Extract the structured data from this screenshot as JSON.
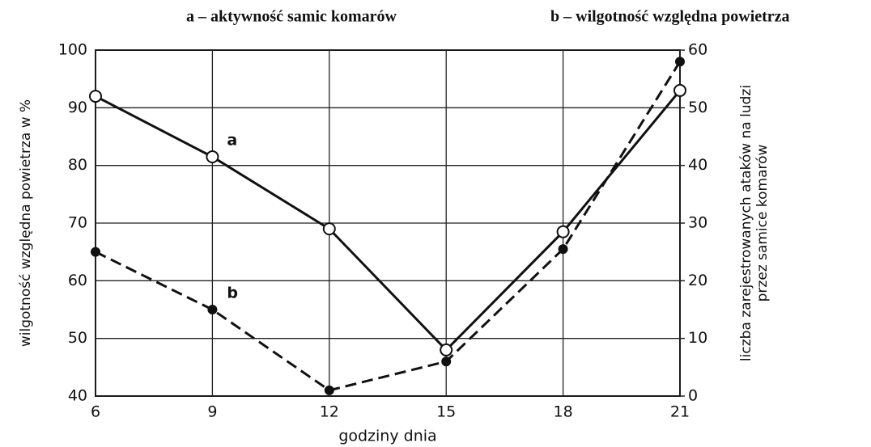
{
  "chart_data": {
    "type": "line",
    "legend": [
      "a – aktywność samic komarów",
      "b – wilgotność względna powietrza"
    ],
    "xlabel": "godziny dnia",
    "ylabel": "wilgotność względna powietrza w %",
    "y2label": [
      "liczba zarejestrowanych ataków na ludzi",
      "przez samice komarów"
    ],
    "x": [
      6,
      9,
      12,
      15,
      18,
      21
    ],
    "series": [
      {
        "name": "a",
        "color": "#111111",
        "axis": "y2",
        "dashed": false,
        "marker": "open",
        "values": [
          52,
          41.5,
          29,
          8,
          28.5,
          53
        ]
      },
      {
        "name": "b",
        "color": "#111111",
        "dashed": true,
        "marker": "filled",
        "values": [
          65,
          55,
          41,
          46,
          65.5,
          98
        ]
      }
    ],
    "xlim": [
      6,
      21
    ],
    "xticks": [
      6,
      9,
      12,
      15,
      18,
      21
    ],
    "ylim": [
      40,
      100
    ],
    "yticks": [
      40,
      50,
      60,
      70,
      80,
      90,
      100
    ],
    "y2lim": [
      0,
      60
    ],
    "y2ticks": [
      0,
      10,
      20,
      30,
      40,
      50,
      60
    ],
    "grid": true
  }
}
